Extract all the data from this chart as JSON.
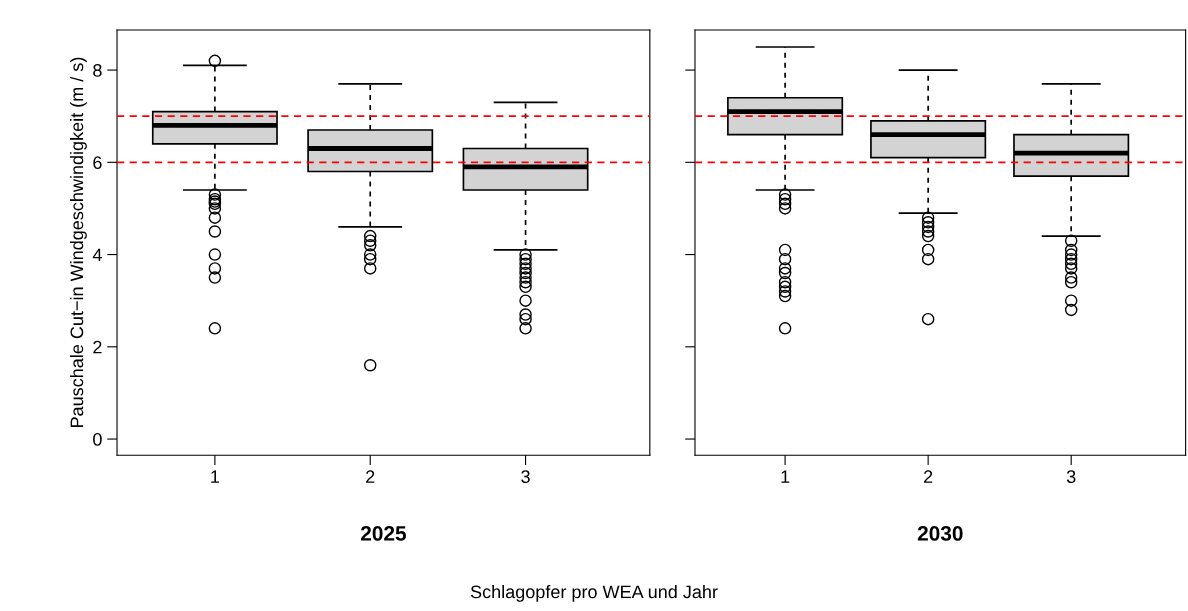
{
  "chart_data": [
    {
      "type": "box",
      "xlabel": "2025",
      "ylabel": "Pauschale Cut−in Windgeschwindigkeit (m / s)",
      "categories": [
        "1",
        "2",
        "3"
      ],
      "color": "#d3d3d3",
      "ylim": [
        -0.35,
        8.87
      ],
      "yticks": [
        0,
        2,
        4,
        6,
        8
      ],
      "grid": false,
      "boxes": [
        {
          "low": 5.4,
          "q1": 6.4,
          "median": 6.8,
          "q3": 7.1,
          "high": 8.1,
          "outliers": [
            8.2,
            5.3,
            5.2,
            5.15,
            5.1,
            5.0,
            4.8,
            4.5,
            4.0,
            3.7,
            3.5,
            2.4
          ]
        },
        {
          "low": 4.6,
          "q1": 5.8,
          "median": 6.3,
          "q3": 6.7,
          "high": 7.7,
          "outliers": [
            4.4,
            4.3,
            4.2,
            4.0,
            3.9,
            3.7,
            1.6
          ]
        },
        {
          "low": 4.1,
          "q1": 5.4,
          "median": 5.9,
          "q3": 6.3,
          "high": 7.3,
          "outliers": [
            4.0,
            3.9,
            3.8,
            3.7,
            3.6,
            3.5,
            3.4,
            3.3,
            3.0,
            2.7,
            2.6,
            2.4
          ]
        }
      ],
      "ref_lines": [
        {
          "axis": "y",
          "value": 7,
          "label": null,
          "color": "#ff0000",
          "line_style": "dashed"
        },
        {
          "axis": "y",
          "value": 6,
          "label": null,
          "color": "#ff0000",
          "line_style": "dashed"
        }
      ],
      "annotations": [
        "Schlagopfer pro WEA und Jahr"
      ]
    },
    {
      "type": "box",
      "xlabel": "2030",
      "categories": [
        "1",
        "2",
        "3"
      ],
      "color": "#d3d3d3",
      "ylim": [
        -0.35,
        8.87
      ],
      "yticks": [
        0,
        2,
        4,
        6,
        8
      ],
      "grid": false,
      "tick_labels": "x",
      "boxes": [
        {
          "low": 5.4,
          "q1": 6.6,
          "median": 7.1,
          "q3": 7.4,
          "high": 8.5,
          "outliers": [
            5.3,
            5.2,
            5.1,
            5.0,
            4.1,
            3.9,
            3.7,
            3.6,
            3.4,
            3.3,
            3.2,
            3.1,
            2.4
          ]
        },
        {
          "low": 4.9,
          "q1": 6.1,
          "median": 6.6,
          "q3": 6.9,
          "high": 8.0,
          "outliers": [
            4.8,
            4.7,
            4.6,
            4.5,
            4.4,
            4.1,
            3.9,
            2.6
          ]
        },
        {
          "low": 4.4,
          "q1": 5.7,
          "median": 6.2,
          "q3": 6.6,
          "high": 7.7,
          "outliers": [
            4.3,
            4.1,
            4.0,
            3.9,
            3.8,
            3.7,
            3.5,
            3.4,
            3.0,
            2.8
          ]
        }
      ],
      "ref_lines": [
        {
          "axis": "y",
          "value": 7,
          "label": null,
          "color": "#ff0000",
          "line_style": "dashed"
        },
        {
          "axis": "y",
          "value": 6,
          "label": null,
          "color": "#ff0000",
          "line_style": "dashed"
        }
      ]
    }
  ]
}
